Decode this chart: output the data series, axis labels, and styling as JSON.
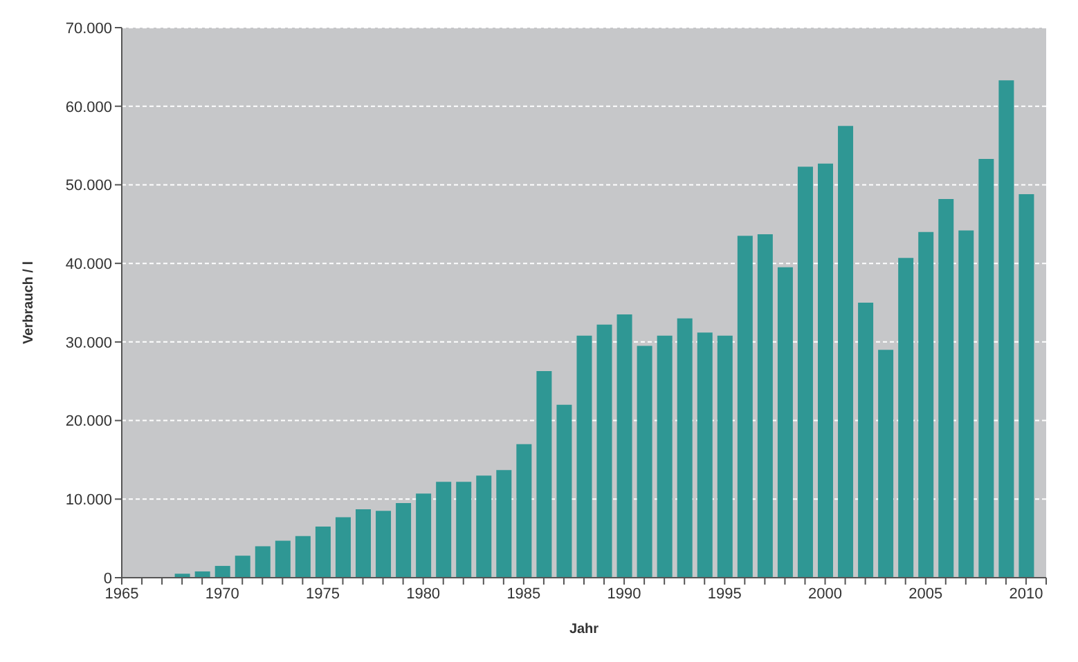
{
  "chart_data": {
    "type": "bar",
    "xlabel": "Jahr",
    "ylabel": "Verbrauch / l",
    "x": [
      1968,
      1969,
      1970,
      1971,
      1972,
      1973,
      1974,
      1975,
      1976,
      1977,
      1978,
      1979,
      1980,
      1981,
      1982,
      1983,
      1984,
      1985,
      1986,
      1987,
      1988,
      1989,
      1990,
      1991,
      1992,
      1993,
      1994,
      1995,
      1996,
      1997,
      1998,
      1999,
      2000,
      2001,
      2002,
      2003,
      2004,
      2005,
      2006,
      2007,
      2008,
      2009,
      2010
    ],
    "values": [
      500,
      800,
      1500,
      2800,
      4000,
      4700,
      5300,
      6500,
      7700,
      8700,
      8500,
      9500,
      10700,
      12200,
      12200,
      13000,
      13700,
      17000,
      26300,
      22000,
      30800,
      32200,
      33500,
      29500,
      30800,
      33000,
      31200,
      30800,
      43500,
      43700,
      39500,
      52300,
      52700,
      57500,
      35000,
      29000,
      40700,
      44000,
      48200,
      44200,
      53300,
      63300,
      48800
    ],
    "color": "#2f9794",
    "xlim": [
      1965,
      2011
    ],
    "xticks": [
      1965,
      {
        "value": 1966,
        "label": null
      },
      {
        "value": 1967,
        "label": null
      },
      {
        "value": 1968,
        "label": null
      },
      {
        "value": 1969,
        "label": null
      },
      1970,
      {
        "value": 1971,
        "label": null
      },
      {
        "value": 1972,
        "label": null
      },
      {
        "value": 1973,
        "label": null
      },
      {
        "value": 1974,
        "label": null
      },
      1975,
      {
        "value": 1976,
        "label": null
      },
      {
        "value": 1977,
        "label": null
      },
      {
        "value": 1978,
        "label": null
      },
      {
        "value": 1979,
        "label": null
      },
      1980,
      {
        "value": 1981,
        "label": null
      },
      {
        "value": 1982,
        "label": null
      },
      {
        "value": 1983,
        "label": null
      },
      {
        "value": 1984,
        "label": null
      },
      1985,
      {
        "value": 1986,
        "label": null
      },
      {
        "value": 1987,
        "label": null
      },
      {
        "value": 1988,
        "label": null
      },
      {
        "value": 1989,
        "label": null
      },
      1990,
      {
        "value": 1991,
        "label": null
      },
      {
        "value": 1992,
        "label": null
      },
      {
        "value": 1993,
        "label": null
      },
      {
        "value": 1994,
        "label": null
      },
      1995,
      {
        "value": 1996,
        "label": null
      },
      {
        "value": 1997,
        "label": null
      },
      {
        "value": 1998,
        "label": null
      },
      {
        "value": 1999,
        "label": null
      },
      2000,
      {
        "value": 2001,
        "label": null
      },
      {
        "value": 2002,
        "label": null
      },
      {
        "value": 2003,
        "label": null
      },
      {
        "value": 2004,
        "label": null
      },
      2005,
      {
        "value": 2006,
        "label": null
      },
      {
        "value": 2007,
        "label": null
      },
      {
        "value": 2008,
        "label": null
      },
      {
        "value": 2009,
        "label": null
      },
      2010,
      {
        "value": 2011,
        "label": null
      }
    ],
    "ylim": [
      0,
      70000
    ],
    "yticks": [
      0,
      {
        "value": 10000,
        "label": "10.000"
      },
      {
        "value": 20000,
        "label": "20.000"
      },
      {
        "value": 30000,
        "label": "30.000"
      },
      {
        "value": 40000,
        "label": "40.000"
      },
      {
        "value": 50000,
        "label": "50.000"
      },
      {
        "value": 60000,
        "label": "60.000"
      },
      {
        "value": 70000,
        "label": "70.000"
      }
    ],
    "grid": "y"
  }
}
